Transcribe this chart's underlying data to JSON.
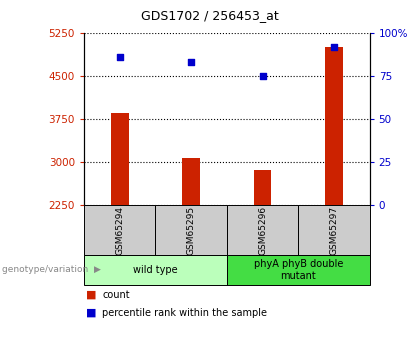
{
  "title": "GDS1702 / 256453_at",
  "samples": [
    "GSM65294",
    "GSM65295",
    "GSM65296",
    "GSM65297"
  ],
  "counts": [
    3850,
    3080,
    2870,
    5000
  ],
  "percentiles": [
    86,
    83,
    75,
    92
  ],
  "ylim_left": [
    2250,
    5250
  ],
  "ylim_right": [
    0,
    100
  ],
  "yticks_left": [
    2250,
    3000,
    3750,
    4500,
    5250
  ],
  "yticks_right": [
    0,
    25,
    50,
    75,
    100
  ],
  "bar_color": "#cc2200",
  "dot_color": "#0000cc",
  "groups": [
    {
      "label": "wild type",
      "samples": [
        0,
        1
      ],
      "color": "#bbffbb"
    },
    {
      "label": "phyA phyB double\nmutant",
      "samples": [
        2,
        3
      ],
      "color": "#44dd44"
    }
  ],
  "group_label_prefix": "genotype/variation",
  "legend_count_label": "count",
  "legend_pct_label": "percentile rank within the sample",
  "plot_bg": "#ffffff",
  "left_tick_color": "#cc2200",
  "right_tick_color": "#0000cc",
  "sample_box_color": "#cccccc",
  "bar_width": 0.25
}
